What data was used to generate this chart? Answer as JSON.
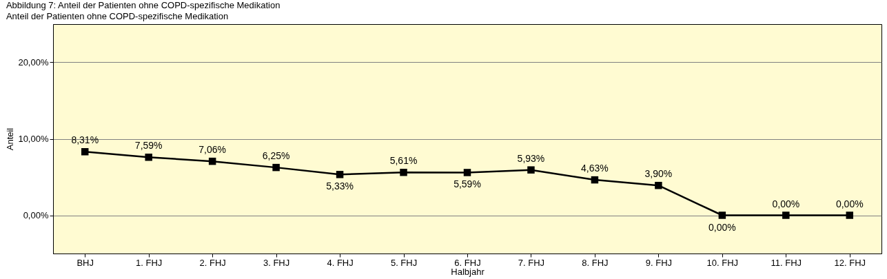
{
  "chart_data": {
    "type": "line",
    "title": "Abbildung 7: Anteil der Patienten ohne COPD-spezifische Medikation",
    "subtitle": "Anteil der Patienten ohne COPD-spezifische Medikation",
    "xlabel": "Halbjahr",
    "ylabel": "Anteil",
    "categories": [
      "BHJ",
      "1. FHJ",
      "2. FHJ",
      "3. FHJ",
      "4. FHJ",
      "5. FHJ",
      "6. FHJ",
      "7. FHJ",
      "8. FHJ",
      "9. FHJ",
      "10. FHJ",
      "11. FHJ",
      "12. FHJ"
    ],
    "series": [
      {
        "color": "#000000",
        "values": [
          8.31,
          7.59,
          7.06,
          6.25,
          5.33,
          5.61,
          5.59,
          5.93,
          4.63,
          3.9,
          0.0,
          0.0,
          0.0
        ],
        "value_labels": [
          "8,31%",
          "7,59%",
          "7,06%",
          "6,25%",
          "5,33%",
          "5,61%",
          "5,59%",
          "5,93%",
          "4,63%",
          "3,90%",
          "0,00%",
          "0,00%",
          "0,00%"
        ]
      }
    ],
    "ylim": [
      -5,
      25
    ],
    "yticks": [
      {
        "value": 0,
        "label": "0,00%"
      },
      {
        "value": 10,
        "label": "10,00%"
      },
      {
        "value": 20,
        "label": "20,00%"
      }
    ],
    "grid": "y",
    "marker": "square",
    "line_style": "solid"
  }
}
